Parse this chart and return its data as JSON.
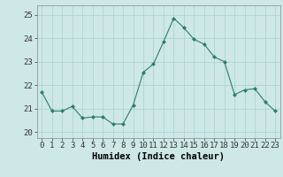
{
  "x": [
    0,
    1,
    2,
    3,
    4,
    5,
    6,
    7,
    8,
    9,
    10,
    11,
    12,
    13,
    14,
    15,
    16,
    17,
    18,
    19,
    20,
    21,
    22,
    23
  ],
  "y": [
    21.7,
    20.9,
    20.9,
    21.1,
    20.6,
    20.65,
    20.65,
    20.35,
    20.35,
    21.15,
    22.55,
    22.9,
    23.85,
    24.85,
    24.45,
    23.95,
    23.75,
    23.2,
    23.0,
    21.6,
    21.8,
    21.85,
    21.3,
    20.9
  ],
  "line_color": "#2e7d6e",
  "marker": "D",
  "marker_size": 2.0,
  "bg_color": "#cde8e7",
  "grid_color": "#a8d0ce",
  "xlabel": "Humidex (Indice chaleur)",
  "xlabel_fontsize": 7.5,
  "yticks": [
    20,
    21,
    22,
    23,
    24,
    25
  ],
  "ylim": [
    19.75,
    25.4
  ],
  "xlim": [
    -0.5,
    23.5
  ],
  "tick_fontsize": 6.5
}
